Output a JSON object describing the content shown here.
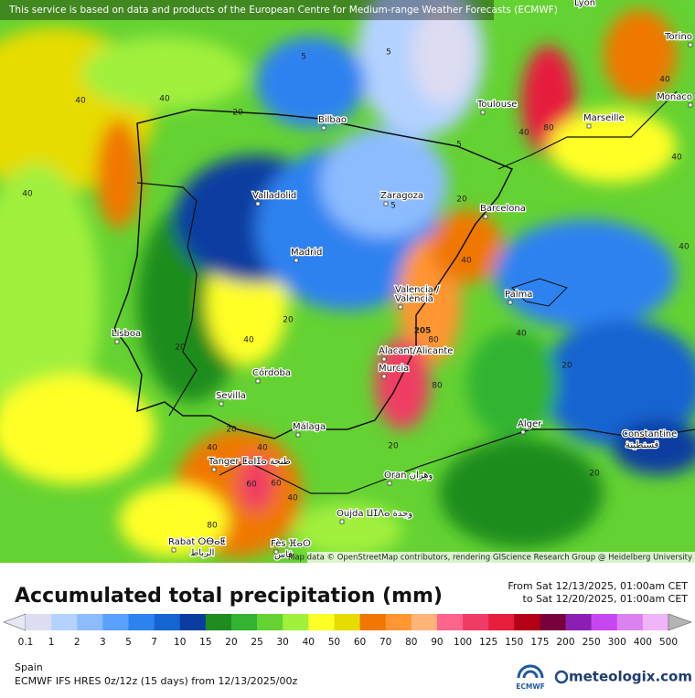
{
  "notice": "This service is based on data and products of the European Centre for Medium-range Weather Forecasts (ECMWF)",
  "cities": [
    "Lyon",
    "Torino",
    "Monaco",
    "Toulouse",
    "Marseille",
    "Bilbao",
    "Valladolid",
    "Zaragoza",
    "Barcelona",
    "Madrid",
    "Valencia /",
    "València",
    "Palma",
    "Lisboa",
    "Alacant/Alicante",
    "Murcia",
    "Córdoba",
    "Sevilla",
    "Málaga",
    "Tanger ⵟⴰⵏⵊⴰ طنجة",
    "Alger",
    "Constantine",
    "قسنطينة",
    "Oran وهران",
    "Oujda ⵡⵊⴷⴰ وجدة",
    "Rabat ⵔⴱⴰⵟ",
    "الرباط",
    "Fès ⴼⴰⵙ",
    "فاس"
  ],
  "contour_labels": [
    40,
    40,
    40,
    20,
    5,
    5,
    5,
    5,
    20,
    40,
    80,
    40,
    40,
    40,
    20,
    20,
    40,
    20,
    40,
    40,
    60,
    40,
    20,
    40,
    20,
    20,
    205,
    80,
    80,
    40,
    60,
    80
  ],
  "attribution": "Map data © OpenStreetMap contributors, rendering GIScience Research Group @ Heidelberg University",
  "title": "Accumulated total precipitation (mm)",
  "period": {
    "from": "From Sat 12/13/2025, 01:00am CET",
    "to": "to Sat 12/20/2025, 01:00am CET"
  },
  "legend": {
    "ticks": [
      0.1,
      1,
      2,
      3,
      5,
      7,
      10,
      15,
      20,
      25,
      30,
      40,
      50,
      60,
      70,
      80,
      90,
      100,
      125,
      150,
      175,
      200,
      250,
      300,
      400,
      500
    ],
    "colors": [
      "#e6e6f6",
      "#dcdcf2",
      "#b4d2ff",
      "#8cbcff",
      "#5aa0ff",
      "#2d82f0",
      "#1464d2",
      "#0b3ca0",
      "#1e8c1e",
      "#32b432",
      "#64d232",
      "#a0f03c",
      "#ffff28",
      "#e6dc00",
      "#f07800",
      "#ff9632",
      "#ffb478",
      "#ff648c",
      "#f03c64",
      "#e61e3c",
      "#b40014",
      "#78003c",
      "#8c1eb4",
      "#c846f0",
      "#dc82f0",
      "#f0b4f8",
      "#f8e6ff",
      "#b4b4b4"
    ]
  },
  "region": "Spain",
  "model": "ECMWF IFS HRES 0z/12z (15 days) from 12/13/2025/00z",
  "logos": [
    "ECMWF",
    "meteologix.com"
  ]
}
